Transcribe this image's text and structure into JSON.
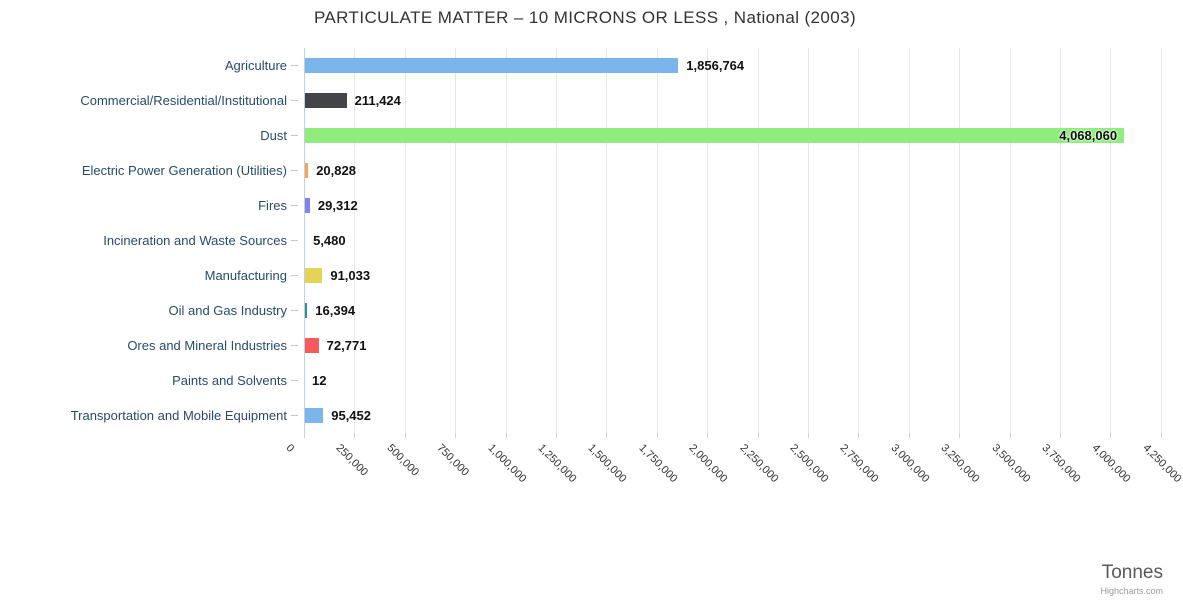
{
  "header": {
    "title": "PARTICULATE MATTER – 10 MICRONS OR LESS , National (2003)"
  },
  "footer": {
    "axis_title": "Tonnes",
    "credits": "Highcharts.com"
  },
  "colors": {
    "title": "#333333",
    "category_label": "#274b6d",
    "value_label": "#111111",
    "gridline": "#e6e6e6",
    "axis_line": "#c0d0e0",
    "tick_mark": "#c0c8d4",
    "axis_title": "#58595b",
    "credits": "#999999"
  },
  "chart_data": {
    "type": "bar",
    "orientation": "horizontal",
    "title": "PARTICULATE MATTER – 10 MICRONS OR LESS , National (2003)",
    "xlabel": "Tonnes",
    "ylabel": "",
    "grid": true,
    "legend": false,
    "xlim": [
      0,
      4276000
    ],
    "tick_interval": 250000,
    "tick_labels": [
      "0",
      "250,000",
      "500,000",
      "750,000",
      "1,000,000",
      "1,250,000",
      "1,500,000",
      "1,750,000",
      "2,000,000",
      "2,250,000",
      "2,500,000",
      "2,750,000",
      "3,000,000",
      "3,250,000",
      "3,500,000",
      "3,750,000",
      "4,000,000",
      "4,250,000"
    ],
    "categories": [
      "Agriculture",
      "Commercial/Residential/Institutional",
      "Dust",
      "Electric Power Generation (Utilities)",
      "Fires",
      "Incineration and Waste Sources",
      "Manufacturing",
      "Oil and Gas Industry",
      "Ores and Mineral Industries",
      "Paints and Solvents",
      "Transportation and Mobile Equipment"
    ],
    "values": [
      1856764,
      211424,
      4068060,
      20828,
      29312,
      5480,
      91033,
      16394,
      72771,
      12,
      95452
    ],
    "value_labels": [
      "1,856,764",
      "211,424",
      "4,068,060",
      "20,828",
      "29,312",
      "5,480",
      "91,033",
      "16,394",
      "72,771",
      "12",
      "95,452"
    ],
    "bar_colors": [
      "#7cb5ec",
      "#434348",
      "#90ed7d",
      "#f7a35c",
      "#8085e9",
      "#f15c80",
      "#e4d354",
      "#2b908f",
      "#f45b5b",
      "#91e8e1",
      "#7cb5ec"
    ],
    "label_inside_bar": [
      false,
      false,
      true,
      false,
      false,
      false,
      false,
      false,
      false,
      false,
      false
    ]
  }
}
